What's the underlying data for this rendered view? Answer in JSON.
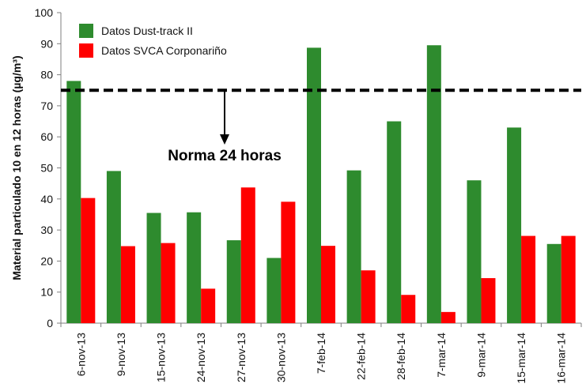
{
  "chart_data": {
    "type": "bar",
    "ylabel": "Material particulado 10 en 12 horas (µg/m³)",
    "xlabel": "",
    "ylim": [
      0,
      100
    ],
    "yticks": [
      0,
      10,
      20,
      30,
      40,
      50,
      60,
      70,
      80,
      90,
      100
    ],
    "categories": [
      "6-nov-13",
      "9-nov-13",
      "15-nov-13",
      "24-nov-13",
      "27-nov-13",
      "30-nov-13",
      "7-feb-14",
      "22-feb-14",
      "28-feb-14",
      "7-mar-14",
      "9-mar-14",
      "15-mar-14",
      "16-mar-14"
    ],
    "series": [
      {
        "name": "Datos Dust-track II",
        "color": "#2e8b2e",
        "values": [
          78,
          49,
          35.5,
          35.7,
          26.7,
          21,
          88.7,
          49.2,
          65,
          89.5,
          46,
          63,
          25.5
        ]
      },
      {
        "name": "Datos SVCA Corponariño",
        "color": "#ff0000",
        "values": [
          40.3,
          24.8,
          25.8,
          11.1,
          43.7,
          39.1,
          24.9,
          17,
          9.1,
          3.6,
          14.5,
          28.1,
          28.1
        ]
      }
    ],
    "reference_line": {
      "value": 75,
      "style": "dashed",
      "color": "#000000"
    },
    "annotation": "Norma 24 horas",
    "legend_position": "top-left",
    "grid": false
  }
}
